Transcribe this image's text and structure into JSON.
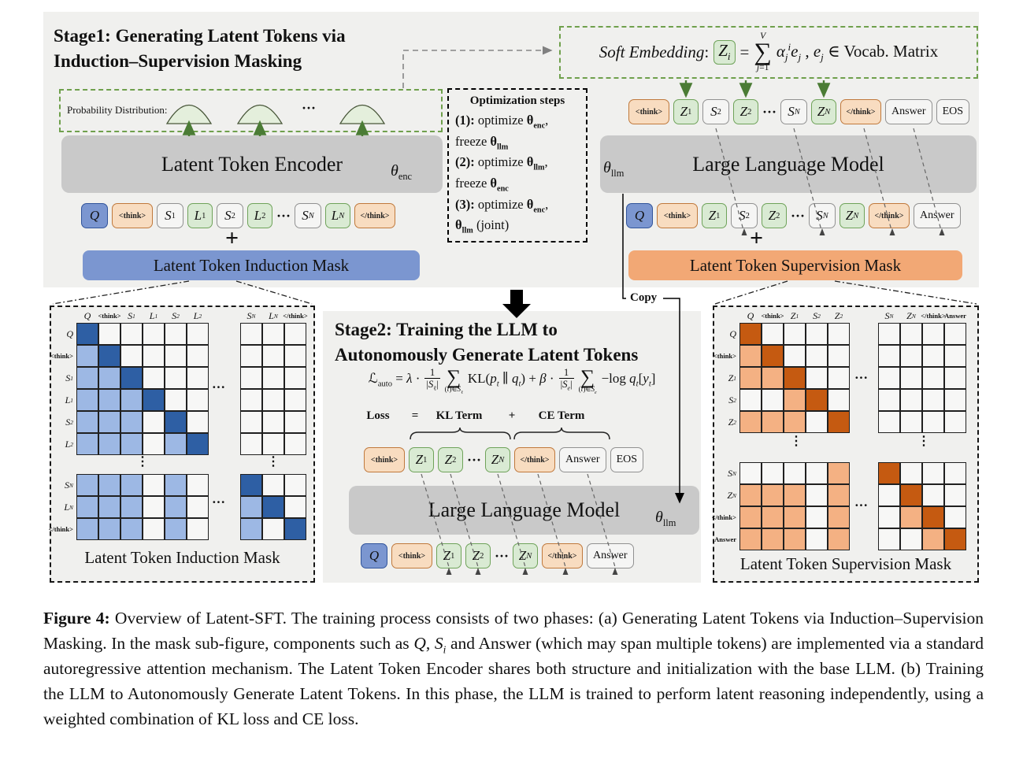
{
  "symbols": {
    "hdots": "···",
    "vdots": "⋮",
    "plus": "+",
    "sigma": "∑"
  },
  "colors": {
    "panel_bg": "#f0f0ee",
    "gray_block": "#c9c9c9",
    "blue_bar": "#7b96d0",
    "orange_bar": "#f2a875",
    "token_blue_bg": "#7b96d0",
    "token_blue_border": "#31549b",
    "token_orange_bg": "#f8dcc0",
    "token_orange_border": "#c0793c",
    "token_green_bg": "#d9ead3",
    "token_green_border": "#6fa35a",
    "token_gray_bg": "#f5f5f4",
    "token_gray_border": "#919191",
    "green_accent": "#4b7c35",
    "mask_empty": "#f7f7f6",
    "induction_dark": "#2e5fa4",
    "induction_light": "#9db8e4",
    "supervision_dark": "#c55a11",
    "supervision_light": "#f4b183"
  },
  "stage1": {
    "title_line1": "Stage1: Generating Latent Tokens via",
    "title_line2": "Induction–Supervision Masking",
    "prob_label": "Probability Distribution:",
    "encoder_label": "Latent Token Encoder",
    "theta_enc": "~θ~_{enc}",
    "theta_llm": "~θ~_{llm}",
    "induction_bar_label": "Latent Token Induction Mask",
    "supervision_bar_label": "Latent Token Supervision Mask",
    "llm_label": "Large Language Model",
    "copy_label": "Copy",
    "enc_input_tokens": [
      {
        "label": "~Q~",
        "type": "q"
      },
      {
        "label": "<think>",
        "type": "think"
      },
      {
        "label": "~S~_{1}",
        "type": "s"
      },
      {
        "label": "~L~_{1}",
        "type": "latent"
      },
      {
        "label": "~S~_{2}",
        "type": "s"
      },
      {
        "label": "~L~_{2}",
        "type": "latent"
      },
      {
        "type": "dots"
      },
      {
        "label": "~S~_{~N~}",
        "type": "s"
      },
      {
        "label": "~L~_{~N~}",
        "type": "latent"
      },
      {
        "label": "</think>",
        "type": "think"
      }
    ],
    "llm_output_tokens": [
      {
        "label": "<think>",
        "type": "think"
      },
      {
        "label": "~Z~_{1}",
        "type": "latent"
      },
      {
        "label": "~S~_{2}",
        "type": "s"
      },
      {
        "label": "~Z~_{2}",
        "type": "latent"
      },
      {
        "type": "dots"
      },
      {
        "label": "~S~_{~N~}",
        "type": "s"
      },
      {
        "label": "~Z~_{~N~}",
        "type": "latent"
      },
      {
        "label": "</think>",
        "type": "think"
      },
      {
        "label": "Answer",
        "type": "plain"
      },
      {
        "label": "EOS",
        "type": "plain"
      }
    ],
    "llm_input_tokens": [
      {
        "label": "~Q~",
        "type": "q"
      },
      {
        "label": "<think>",
        "type": "think"
      },
      {
        "label": "~Z~_{1}",
        "type": "latent"
      },
      {
        "label": "~S~_{2}",
        "type": "s"
      },
      {
        "label": "~Z~_{2}",
        "type": "latent"
      },
      {
        "type": "dots"
      },
      {
        "label": "~S~_{~N~}",
        "type": "s"
      },
      {
        "label": "~Z~_{~N~}",
        "type": "latent"
      },
      {
        "label": "</think>",
        "type": "think"
      },
      {
        "label": "Answer",
        "type": "plain"
      }
    ],
    "soft_embedding": [
      {
        "text": "~Soft Embedding~:"
      },
      {
        "chip": "~Z~_{~i~}"
      },
      {
        "text": "="
      },
      {
        "sum": {
          "top": "~V~",
          "bottom": "~j~=1"
        }
      },
      {
        "text": "~α~_{~j~}^{~i~}~e~_{~j~} , ~e~_{~j~} ∈ Vocab. Matrix"
      }
    ]
  },
  "optimization": {
    "title": "Optimization steps",
    "lines": [
      "*(1):* optimize *θ*_{*enc*},",
      "freeze *θ*_{*llm*}",
      "*(2):* optimize *θ*_{*llm*},",
      "freeze *θ*_{*enc*}",
      "*(3):* optimize *θ*_{*enc*},",
      "*θ*_{*llm*} (joint)"
    ]
  },
  "stage2": {
    "title_line1": "Stage2: Training the LLM to",
    "title_line2": "Autonomously Generate Latent Tokens",
    "llm_label": "Large Language Model",
    "theta_llm": "~θ~_{llm}",
    "loss_formula": [
      {
        "text": "ℒ_{auto} = ~λ~ ·"
      },
      {
        "frac": {
          "num": "1",
          "den": "|~S~_{ℓ}|"
        }
      },
      {
        "sum": {
          "top": "",
          "bottom": "(~t~)∈~S~_{ℓ}"
        }
      },
      {
        "text": "KL(~p~_{~t~} ∥ ~q~_{~t~}) + ~β~ ·"
      },
      {
        "frac": {
          "num": "1",
          "den": "|~S~_{~e~}|"
        }
      },
      {
        "sum": {
          "top": "",
          "bottom": "(~t~)∈~S~_{~e~}"
        }
      },
      {
        "text": "−log ~q~_{~t~}[~y~_{~t~}]"
      }
    ],
    "loss_row": [
      "Loss",
      "=",
      "KL Term",
      "+",
      "CE Term"
    ],
    "output_tokens": [
      {
        "label": "<think>",
        "type": "think"
      },
      {
        "label": "~Z~_{1}",
        "type": "latent"
      },
      {
        "label": "~Z~_{2}",
        "type": "latent"
      },
      {
        "type": "dots"
      },
      {
        "label": "~Z~_{~N~}",
        "type": "latent"
      },
      {
        "label": "</think>",
        "type": "think"
      },
      {
        "label": "Answer",
        "type": "plain"
      },
      {
        "label": "EOS",
        "type": "plain"
      }
    ],
    "input_tokens": [
      {
        "label": "~Q~",
        "type": "q"
      },
      {
        "label": "<think>",
        "type": "think"
      },
      {
        "label": "~Z~_{1}",
        "type": "latent"
      },
      {
        "label": "~Z~_{2}",
        "type": "latent"
      },
      {
        "type": "dots"
      },
      {
        "label": "~Z~_{~N~}",
        "type": "latent"
      },
      {
        "label": "</think>",
        "type": "think"
      },
      {
        "label": "Answer",
        "type": "plain"
      }
    ]
  },
  "masks": {
    "induction": {
      "title": "Latent Token Induction Mask",
      "dark_color": "#2e5fa4",
      "light_color": "#9db8e4",
      "cols_left": [
        "~Q~",
        "<think>",
        "~S~_{1}",
        "~L~_{1}",
        "~S~_{2}",
        "~L~_{2}"
      ],
      "cols_right": [
        "~S~_{~N~}",
        "~L~_{~N~}",
        "</think>"
      ],
      "top_rows": [
        {
          "label": "~Q~",
          "left": [
            2,
            0,
            0,
            0,
            0,
            0
          ],
          "right": [
            0,
            0,
            0
          ]
        },
        {
          "label": "<think>",
          "left": [
            1,
            2,
            0,
            0,
            0,
            0
          ],
          "right": [
            0,
            0,
            0
          ]
        },
        {
          "label": "~S~_{1}",
          "left": [
            1,
            1,
            2,
            0,
            0,
            0
          ],
          "right": [
            0,
            0,
            0
          ]
        },
        {
          "label": "~L~_{1}",
          "left": [
            1,
            1,
            1,
            2,
            0,
            0
          ],
          "right": [
            0,
            0,
            0
          ]
        },
        {
          "label": "~S~_{2}",
          "left": [
            1,
            1,
            1,
            0,
            2,
            0
          ],
          "right": [
            0,
            0,
            0
          ]
        },
        {
          "label": "~L~_{2}",
          "left": [
            1,
            1,
            1,
            0,
            1,
            2
          ],
          "right": [
            0,
            0,
            0
          ]
        }
      ],
      "bottom_rows": [
        {
          "label": "~S~_{~N~}",
          "left": [
            1,
            1,
            1,
            0,
            1,
            0
          ],
          "right": [
            2,
            0,
            0
          ]
        },
        {
          "label": "~L~_{~N~}",
          "left": [
            1,
            1,
            1,
            0,
            1,
            0
          ],
          "right": [
            1,
            2,
            0
          ]
        },
        {
          "label": "</think>",
          "left": [
            1,
            1,
            1,
            0,
            1,
            0
          ],
          "right": [
            1,
            0,
            2
          ]
        }
      ]
    },
    "supervision": {
      "title": "Latent Token Supervision Mask",
      "dark_color": "#c55a11",
      "light_color": "#f4b183",
      "cols_left": [
        "~Q~",
        "<think>",
        "~Z~_{1}",
        "~S~_{2}",
        "~Z~_{2}"
      ],
      "cols_right": [
        "~S~_{~N~}",
        "~Z~_{~N~}",
        "</think>",
        "Answer"
      ],
      "top_rows": [
        {
          "label": "~Q~",
          "left": [
            2,
            0,
            0,
            0,
            0
          ],
          "right": [
            0,
            0,
            0,
            0
          ]
        },
        {
          "label": "<think>",
          "left": [
            1,
            2,
            0,
            0,
            0
          ],
          "right": [
            0,
            0,
            0,
            0
          ]
        },
        {
          "label": "~Z~_{1}",
          "left": [
            1,
            1,
            2,
            0,
            0
          ],
          "right": [
            0,
            0,
            0,
            0
          ]
        },
        {
          "label": "~S~_{2}",
          "left": [
            0,
            0,
            1,
            2,
            0
          ],
          "right": [
            0,
            0,
            0,
            0
          ]
        },
        {
          "label": "~Z~_{2}",
          "left": [
            1,
            1,
            1,
            0,
            2
          ],
          "right": [
            0,
            0,
            0,
            0
          ]
        }
      ],
      "bottom_rows": [
        {
          "label": "~S~_{~N~}",
          "left": [
            0,
            0,
            0,
            0,
            1
          ],
          "right": [
            2,
            0,
            0,
            0
          ]
        },
        {
          "label": "~Z~_{~N~}",
          "left": [
            1,
            1,
            1,
            0,
            1
          ],
          "right": [
            0,
            2,
            0,
            0
          ]
        },
        {
          "label": "</think>",
          "left": [
            1,
            1,
            1,
            0,
            1
          ],
          "right": [
            0,
            1,
            2,
            0
          ]
        },
        {
          "label": "Answer",
          "left": [
            1,
            1,
            1,
            0,
            1
          ],
          "right": [
            0,
            0,
            1,
            2
          ]
        }
      ]
    }
  },
  "caption": "*Figure 4:* Overview of Latent-SFT. The training process consists of two phases: (a) Generating Latent Tokens via Induction–Supervision Masking. In the mask sub-figure, components such as ~Q~, ~S~_{~i~} and Answer (which may span multiple tokens) are implemented via a standard autoregressive attention mechanism. The Latent Token Encoder shares both structure and initialization with the base LLM. (b) Training the LLM to Autonomously Generate Latent Tokens. In this phase, the LLM is trained to perform latent reasoning independently, using a weighted combination of KL loss and CE loss."
}
